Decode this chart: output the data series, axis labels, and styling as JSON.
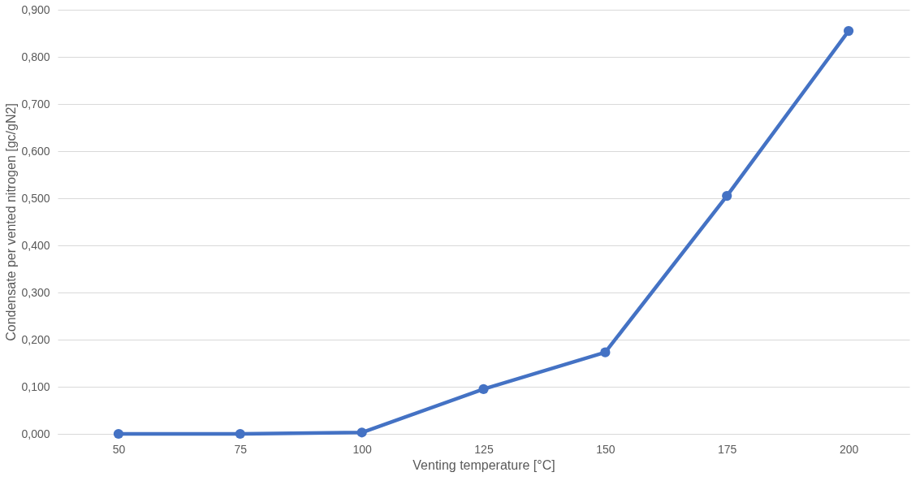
{
  "chart_data": {
    "type": "line",
    "xlabel": "Venting temperature [°C]",
    "ylabel": "Condensate per vented nitrogen [gc/gN2]",
    "categories": [
      "50",
      "75",
      "100",
      "125",
      "150",
      "175",
      "200"
    ],
    "series": [
      {
        "color": "#4472c4",
        "values": [
          0.0,
          0.0,
          0.003,
          0.095,
          0.173,
          0.505,
          0.855
        ]
      }
    ],
    "ylim": [
      0,
      0.9
    ],
    "yticks": [
      {
        "value": 0,
        "label": "0,000"
      },
      {
        "value": 0.1,
        "label": "0,100"
      },
      {
        "value": 0.2,
        "label": "0,200"
      },
      {
        "value": 0.3,
        "label": "0,300"
      },
      {
        "value": 0.4,
        "label": "0,400"
      },
      {
        "value": 0.5,
        "label": "0,500"
      },
      {
        "value": 0.6,
        "label": "0,600"
      },
      {
        "value": 0.7,
        "label": "0,700"
      },
      {
        "value": 0.8,
        "label": "0,800"
      },
      {
        "value": 0.9,
        "label": "0,900"
      }
    ],
    "grid": "y",
    "marker": "circle",
    "line_style": "solid"
  }
}
